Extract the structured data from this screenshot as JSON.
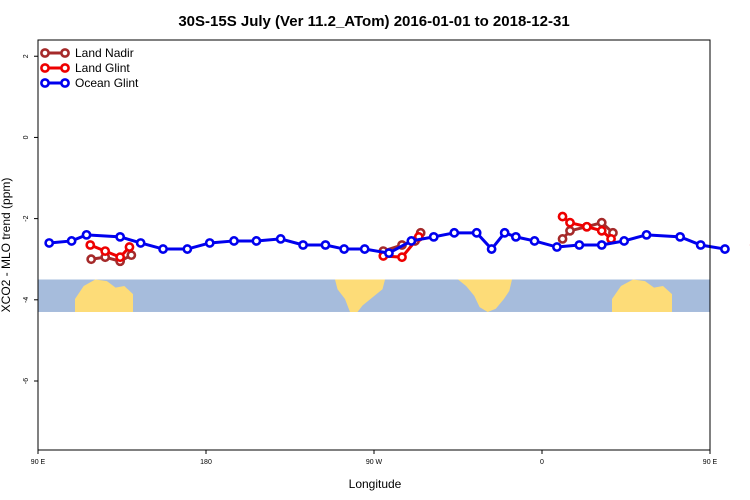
{
  "chart_data": {
    "type": "line",
    "title": "30S-15S July (Ver 11.2_ATom)   2016-01-01 to 2018-12-31",
    "xlabel": "Longitude",
    "ylabel": "XCO2 - MLO trend (ppm)",
    "xlim": [
      90,
      450
    ],
    "ylim": [
      -7.7,
      2.4
    ],
    "x_ticks": [
      {
        "value": 90,
        "label": "90 E"
      },
      {
        "value": 180,
        "label": "180"
      },
      {
        "value": 270,
        "label": "90 W"
      },
      {
        "value": 360,
        "label": "0"
      },
      {
        "value": 450,
        "label": "90 E"
      },
      {
        "value": 540,
        "label": "180"
      }
    ],
    "y_ticks": [
      {
        "value": 2,
        "label": "2"
      },
      {
        "value": 0,
        "label": "0"
      },
      {
        "value": -2,
        "label": "-2"
      },
      {
        "value": -4,
        "label": "-4"
      },
      {
        "value": -6,
        "label": "-6"
      }
    ],
    "grid": false,
    "legend_position": "top-left",
    "map_band": {
      "y_top": -3.5,
      "y_bottom": -4.3,
      "ocean_color": "#a6bcdc",
      "land_color": "#fddc78"
    },
    "series": [
      {
        "name": "Land Nadir",
        "color": "#a52a2a",
        "segments": [
          [
            [
              118.5,
              -3.0
            ],
            [
              126,
              -2.95
            ],
            [
              134,
              -3.05
            ],
            [
              140,
              -2.9
            ]
          ],
          [
            [
              275,
              -2.8
            ],
            [
              285,
              -2.65
            ],
            [
              292,
              -2.55
            ],
            [
              295,
              -2.35
            ]
          ],
          [
            [
              371,
              -2.5
            ],
            [
              375,
              -2.3
            ],
            [
              384,
              -2.2
            ],
            [
              392,
              -2.1
            ],
            [
              398,
              -2.35
            ]
          ],
          [
            [
              475,
              -2.95
            ],
            [
              483,
              -2.92
            ],
            [
              491,
              -2.9
            ],
            [
              495,
              -3.08
            ],
            [
              502,
              -2.9
            ]
          ]
        ]
      },
      {
        "name": "Land Glint",
        "color": "#ee0000",
        "segments": [
          [
            [
              118,
              -2.65
            ],
            [
              126,
              -2.8
            ],
            [
              134,
              -2.95
            ],
            [
              139,
              -2.7
            ]
          ],
          [
            [
              275,
              -2.92
            ],
            [
              285,
              -2.95
            ],
            [
              294,
              -2.45
            ]
          ],
          [
            [
              371,
              -1.95
            ],
            [
              375,
              -2.1
            ],
            [
              384,
              -2.2
            ],
            [
              392,
              -2.3
            ],
            [
              397,
              -2.5
            ]
          ],
          [
            [
              474,
              -2.65
            ],
            [
              483,
              -2.8
            ],
            [
              491,
              -2.95
            ],
            [
              502,
              -2.7
            ]
          ]
        ]
      },
      {
        "name": "Ocean Glint",
        "color": "#0000ee",
        "segments": [
          [
            [
              96,
              -2.6
            ],
            [
              108,
              -2.55
            ],
            [
              116,
              -2.4
            ],
            [
              134,
              -2.45
            ],
            [
              145,
              -2.6
            ],
            [
              157,
              -2.75
            ],
            [
              170,
              -2.75
            ],
            [
              182,
              -2.6
            ],
            [
              195,
              -2.55
            ],
            [
              207,
              -2.55
            ],
            [
              220,
              -2.5
            ],
            [
              232,
              -2.65
            ],
            [
              244,
              -2.65
            ],
            [
              254,
              -2.75
            ],
            [
              265,
              -2.75
            ],
            [
              278,
              -2.85
            ],
            [
              290,
              -2.55
            ],
            [
              302,
              -2.45
            ],
            [
              313,
              -2.35
            ],
            [
              325,
              -2.35
            ],
            [
              333,
              -2.75
            ],
            [
              340,
              -2.35
            ],
            [
              346,
              -2.45
            ],
            [
              356,
              -2.55
            ],
            [
              368,
              -2.7
            ],
            [
              380,
              -2.65
            ],
            [
              392,
              -2.65
            ],
            [
              404,
              -2.55
            ],
            [
              416,
              -2.4
            ],
            [
              434,
              -2.45
            ],
            [
              445,
              -2.65
            ],
            [
              458,
              -2.75
            ]
          ]
        ]
      }
    ]
  }
}
